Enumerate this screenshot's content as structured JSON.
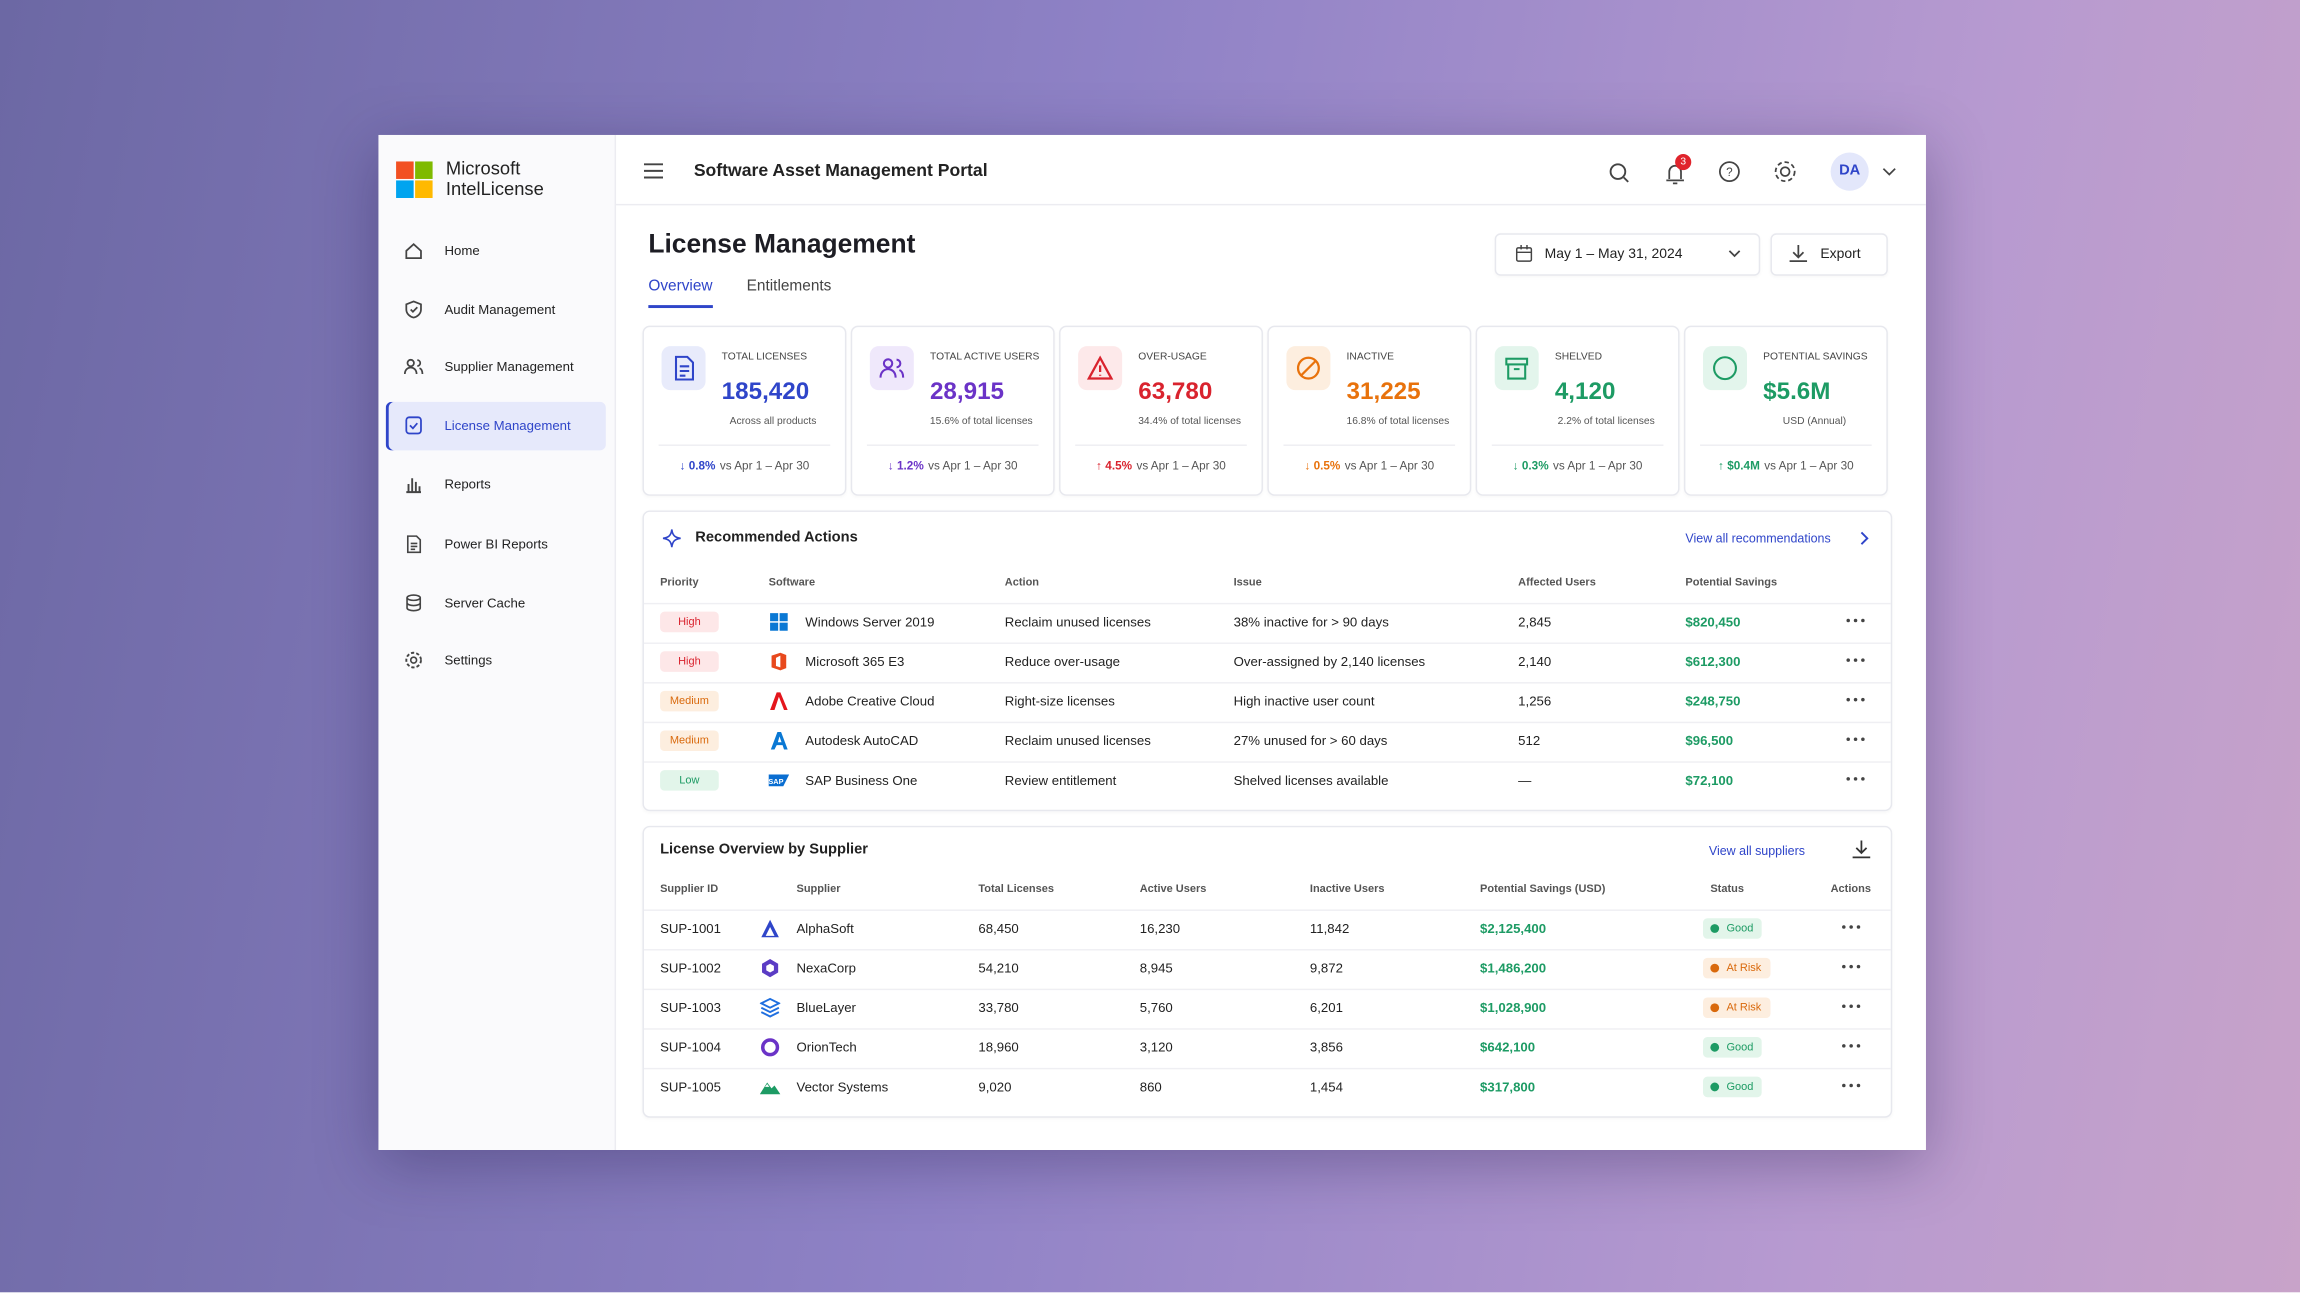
{
  "brand": {
    "line1": "Microsoft",
    "line2": "IntelLicense"
  },
  "nav": [
    "Home",
    "Audit Management",
    "Supplier Management",
    "License Management",
    "Reports",
    "Power BI Reports",
    "Server Cache",
    "Settings"
  ],
  "header": {
    "title": "Software Asset Management Portal",
    "notifications": "3",
    "avatar": "DA"
  },
  "page": {
    "title": "License Management",
    "tabs": [
      "Overview",
      "Entitlements"
    ],
    "date_range": "May 1 – May 31, 2024",
    "export": "Export"
  },
  "kpis": [
    {
      "label": "TOTAL LICENSES",
      "value": "185,420",
      "note": "Across all products",
      "change": "↓ 0.8%",
      "compare": "vs Apr 1 – Apr 30"
    },
    {
      "label": "TOTAL ACTIVE USERS",
      "value": "28,915",
      "note": "15.6% of total licenses",
      "change": "↓ 1.2%",
      "compare": "vs Apr 1 – Apr 30"
    },
    {
      "label": "OVER-USAGE",
      "value": "63,780",
      "note": "34.4% of total licenses",
      "change": "↑ 4.5%",
      "compare": "vs Apr 1 – Apr 30"
    },
    {
      "label": "INACTIVE",
      "value": "31,225",
      "note": "16.8% of total licenses",
      "change": "↓ 0.5%",
      "compare": "vs Apr 1 – Apr 30"
    },
    {
      "label": "SHELVED",
      "value": "4,120",
      "note": "2.2% of total licenses",
      "change": "↓ 0.3%",
      "compare": "vs Apr 1 – Apr 30"
    },
    {
      "label": "POTENTIAL SAVINGS",
      "value": "$5.6M",
      "note": "USD (Annual)",
      "change": "↑ $0.4M",
      "compare": "vs Apr 1 – Apr 30"
    }
  ],
  "recommended": {
    "title": "Recommended Actions",
    "link": "View all recommendations",
    "columns": [
      "Priority",
      "Software",
      "Action",
      "Issue",
      "Affected Users",
      "Potential Savings"
    ],
    "rows": [
      [
        "High",
        "Windows Server 2019",
        "Reclaim unused licenses",
        "38% inactive for > 90 days",
        "2,845",
        "$820,450"
      ],
      [
        "High",
        "Microsoft 365 E3",
        "Reduce over-usage",
        "Over-assigned by 2,140 licenses",
        "2,140",
        "$612,300"
      ],
      [
        "Medium",
        "Adobe Creative Cloud",
        "Right-size licenses",
        "High inactive user count",
        "1,256",
        "$248,750"
      ],
      [
        "Medium",
        "Autodesk AutoCAD",
        "Reclaim unused licenses",
        "27% unused for > 60 days",
        "512",
        "$96,500"
      ],
      [
        "Low",
        "SAP Business One",
        "Review entitlement",
        "Shelved licenses available",
        "—",
        "$72,100"
      ]
    ]
  },
  "suppliers": {
    "title": "License Overview by Supplier",
    "link": "View all suppliers",
    "columns": [
      "Supplier ID",
      "Supplier",
      "Total Licenses",
      "Active Users",
      "Inactive Users",
      "Potential Savings (USD)",
      "Status",
      "Actions"
    ],
    "rows": [
      [
        "SUP-1001",
        "AlphaSoft",
        "68,450",
        "16,230",
        "11,842",
        "$2,125,400",
        "Good"
      ],
      [
        "SUP-1002",
        "NexaCorp",
        "54,210",
        "8,945",
        "9,872",
        "$1,486,200",
        "At Risk"
      ],
      [
        "SUP-1003",
        "BlueLayer",
        "33,780",
        "5,760",
        "6,201",
        "$1,028,900",
        "At Risk"
      ],
      [
        "SUP-1004",
        "OrionTech",
        "18,960",
        "3,120",
        "3,856",
        "$642,100",
        "Good"
      ],
      [
        "SUP-1005",
        "Vector Systems",
        "9,020",
        "860",
        "1,454",
        "$317,800",
        "Good"
      ]
    ]
  }
}
